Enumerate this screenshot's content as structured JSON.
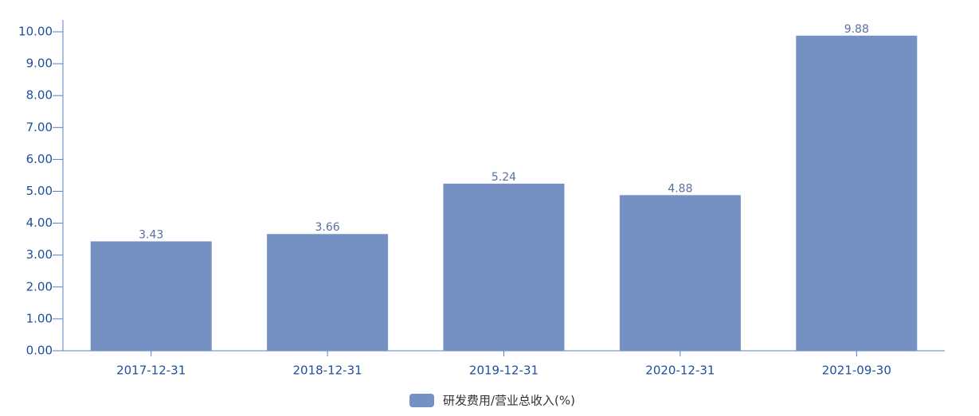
{
  "chart_data": {
    "type": "bar",
    "categories": [
      "2017-12-31",
      "2018-12-31",
      "2019-12-31",
      "2020-12-31",
      "2021-09-30"
    ],
    "series": [
      {
        "name": "研发费用/营业总收入(%)",
        "color": "#7590c2",
        "values": [
          3.43,
          3.66,
          5.24,
          4.88,
          9.88
        ]
      }
    ],
    "ylim": [
      0,
      10
    ],
    "yticks": [
      {
        "value": 0,
        "label": "0.00"
      },
      {
        "value": 1,
        "label": "1.00"
      },
      {
        "value": 2,
        "label": "2.00"
      },
      {
        "value": 3,
        "label": "3.00"
      },
      {
        "value": 4,
        "label": "4.00"
      },
      {
        "value": 5,
        "label": "5.00"
      },
      {
        "value": 6,
        "label": "6.00"
      },
      {
        "value": 7,
        "label": "7.00"
      },
      {
        "value": 8,
        "label": "8.00"
      },
      {
        "value": 9,
        "label": "9.00"
      },
      {
        "value": 10,
        "label": "10.00"
      }
    ],
    "grid": false,
    "legend": "bottom"
  }
}
